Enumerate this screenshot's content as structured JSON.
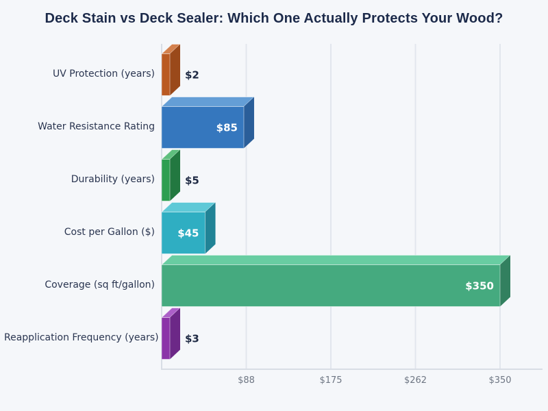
{
  "chart_data": {
    "type": "bar",
    "orientation": "horizontal",
    "bar_style": "3d-extruded",
    "title": "Deck Stain vs Deck Sealer: Which One Actually Protects Your Wood?",
    "categories": [
      "UV Protection (years)",
      "Water Resistance Rating",
      "Durability (years)",
      "Cost per Gallon ($)",
      "Coverage (sq ft/gallon)",
      "Reapplication Frequency (years)"
    ],
    "values": [
      2,
      85,
      5,
      45,
      350,
      3
    ],
    "value_labels": [
      "$2",
      "$85",
      "$5",
      "$45",
      "$350",
      "$3"
    ],
    "xlabel": "",
    "ylabel": "",
    "xlim": [
      0,
      350
    ],
    "x_ticks": [
      {
        "value": 87.5,
        "label": "$88"
      },
      {
        "value": 175,
        "label": "$175"
      },
      {
        "value": 262.5,
        "label": "$262"
      },
      {
        "value": 350,
        "label": "$350"
      }
    ],
    "grid": "vertical",
    "legend": "none",
    "bar_colors": [
      {
        "front": "#BA5A22",
        "top": "#D4804C",
        "side": "#9A491A"
      },
      {
        "front": "#3577BE",
        "top": "#649ED6",
        "side": "#2A5E99"
      },
      {
        "front": "#2E9E51",
        "top": "#5FBE7E",
        "side": "#227840"
      },
      {
        "front": "#2FAEC2",
        "top": "#5FC9D7",
        "side": "#218396"
      },
      {
        "front": "#45AA7F",
        "top": "#68CDA2",
        "side": "#32805F"
      },
      {
        "front": "#8B34A8",
        "top": "#AC60C8",
        "side": "#6C2887"
      }
    ]
  },
  "colors": {
    "background": "#F5F7FA",
    "title": "#1C2A4A",
    "category_label": "#2A3550",
    "tick_label": "#6E7683",
    "value_label_inside": "#FFFFFF",
    "value_label_outside": "#1F2A44",
    "gridline": "#E2E6ED",
    "axis_line": "#D8DDE5"
  }
}
